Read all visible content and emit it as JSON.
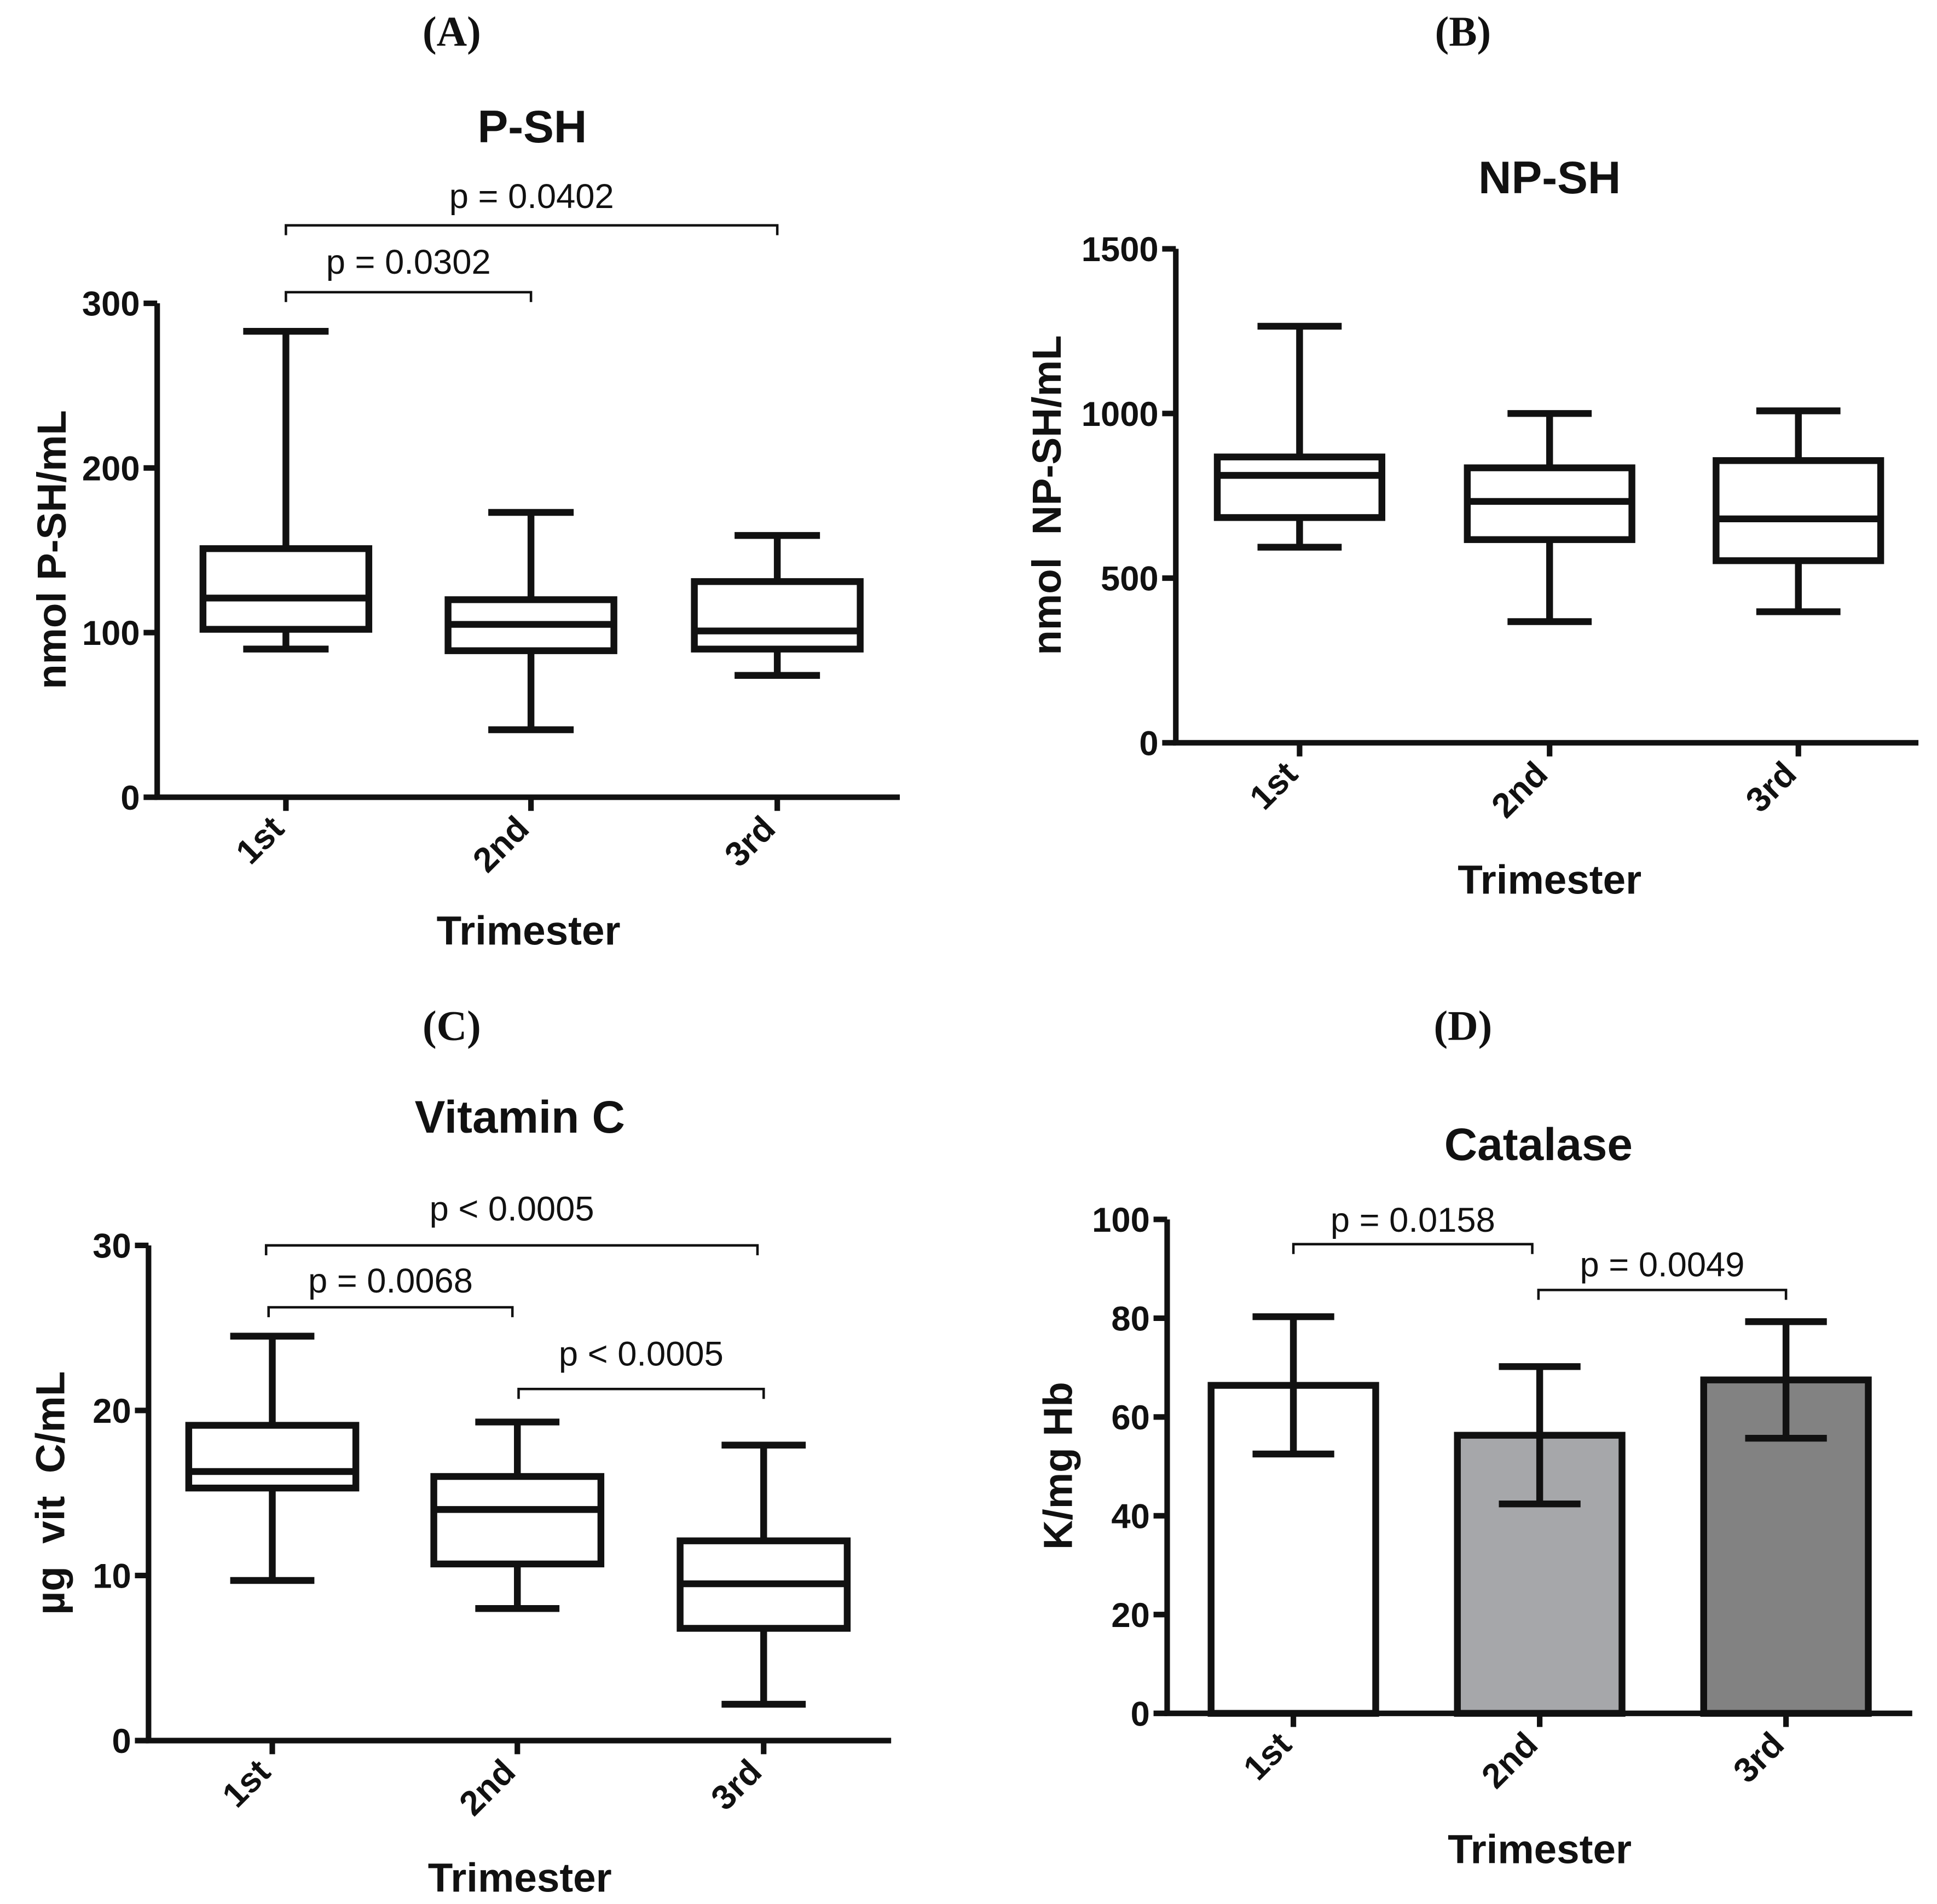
{
  "chart_data": [
    {
      "panel_label": "(A)",
      "type": "box",
      "title": "P-SH",
      "xlabel": "Trimester",
      "ylabel": "nmol P-SH/mL",
      "ylim": [
        0,
        300
      ],
      "yticks": [
        0,
        100,
        200,
        300
      ],
      "categories": [
        "1st",
        "2nd",
        "3rd"
      ],
      "boxes": [
        {
          "min": 90,
          "q1": 102,
          "median": 121,
          "q3": 151,
          "max": 283
        },
        {
          "min": 41,
          "q1": 89,
          "median": 105,
          "q3": 120,
          "max": 173
        },
        {
          "min": 74,
          "q1": 90,
          "median": 101,
          "q3": 131,
          "max": 159
        }
      ],
      "annotations": [
        {
          "from": 0,
          "to": 1,
          "label": "p = 0.0302"
        },
        {
          "from": 0,
          "to": 2,
          "label": "p = 0.0402"
        }
      ]
    },
    {
      "panel_label": "(B)",
      "type": "box",
      "title": "NP-SH",
      "xlabel": "Trimester",
      "ylabel": "nmol  NP-SH/mL",
      "ylim": [
        0,
        1500
      ],
      "yticks": [
        0,
        500,
        1000,
        1500
      ],
      "categories": [
        "1st",
        "2nd",
        "3rd"
      ],
      "boxes": [
        {
          "min": 594,
          "q1": 684,
          "median": 812,
          "q3": 868,
          "max": 1265
        },
        {
          "min": 368,
          "q1": 617,
          "median": 733,
          "q3": 835,
          "max": 1000
        },
        {
          "min": 398,
          "q1": 553,
          "median": 680,
          "q3": 857,
          "max": 1008
        }
      ],
      "annotations": []
    },
    {
      "panel_label": "(C)",
      "type": "box",
      "title": "Vitamin C",
      "xlabel": "Trimester",
      "ylabel": "µg  vit  C/mL",
      "ylim": [
        0,
        30
      ],
      "yticks": [
        0,
        10,
        20,
        30
      ],
      "categories": [
        "1st",
        "2nd",
        "3rd"
      ],
      "boxes": [
        {
          "min": 9.7,
          "q1": 15.3,
          "median": 16.3,
          "q3": 19.1,
          "max": 24.5
        },
        {
          "min": 8.0,
          "q1": 10.7,
          "median": 14.0,
          "q3": 16.0,
          "max": 19.3
        },
        {
          "min": 2.2,
          "q1": 6.8,
          "median": 9.5,
          "q3": 12.1,
          "max": 17.9
        }
      ],
      "annotations": [
        {
          "from": 0,
          "to": 2,
          "label": "p < 0.0005"
        },
        {
          "from": 0,
          "to": 1,
          "label": "p = 0.0068"
        },
        {
          "from": 1,
          "to": 2,
          "label": "p < 0.0005"
        }
      ]
    },
    {
      "panel_label": "(D)",
      "type": "bar",
      "title": "Catalase",
      "xlabel": "Trimester",
      "ylabel": "K/mg Hb",
      "ylim": [
        0,
        100
      ],
      "yticks": [
        0,
        20,
        40,
        60,
        80,
        100
      ],
      "categories": [
        "1st",
        "2nd",
        "3rd"
      ],
      "values": [
        66.4,
        56.3,
        67.5
      ],
      "error": [
        13.9,
        13.9,
        11.8
      ],
      "colors": [
        "#ffffff",
        "#a6a7aa",
        "#828282"
      ],
      "annotations": [
        {
          "from": 0,
          "to": 1,
          "label": "p = 0.0158"
        },
        {
          "from": 1,
          "to": 2,
          "label": "p = 0.0049"
        }
      ]
    }
  ]
}
